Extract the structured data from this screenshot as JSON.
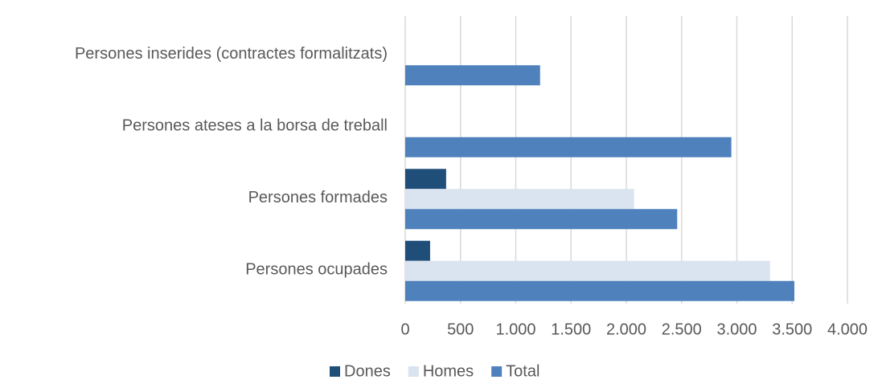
{
  "chart_data": {
    "type": "hbar",
    "categories": [
      "Persones inserides (contractes formalitzats)",
      "Persones ateses a la borsa de treball",
      "Persones formades",
      "Persones ocupades"
    ],
    "series": [
      {
        "name": "Dones",
        "color": "#1f4e79",
        "values": [
          null,
          null,
          370,
          225
        ]
      },
      {
        "name": "Homes",
        "color": "#dae3f0",
        "values": [
          null,
          null,
          2070,
          3300
        ]
      },
      {
        "name": "Total",
        "color": "#4f81bd",
        "values": [
          1220,
          2950,
          2460,
          3520
        ]
      }
    ],
    "xlim": [
      0,
      4000
    ],
    "xticks": [
      0,
      500,
      {
        "value": 1000,
        "label": "1.000"
      },
      {
        "value": 1500,
        "label": "1.500"
      },
      {
        "value": 2000,
        "label": "2.000"
      },
      {
        "value": 2500,
        "label": "2.500"
      },
      {
        "value": 3000,
        "label": "3.000"
      },
      {
        "value": 3500,
        "label": "3.500"
      },
      {
        "value": 4000,
        "label": "4.000"
      }
    ],
    "grid": true,
    "legend": "bottom"
  }
}
